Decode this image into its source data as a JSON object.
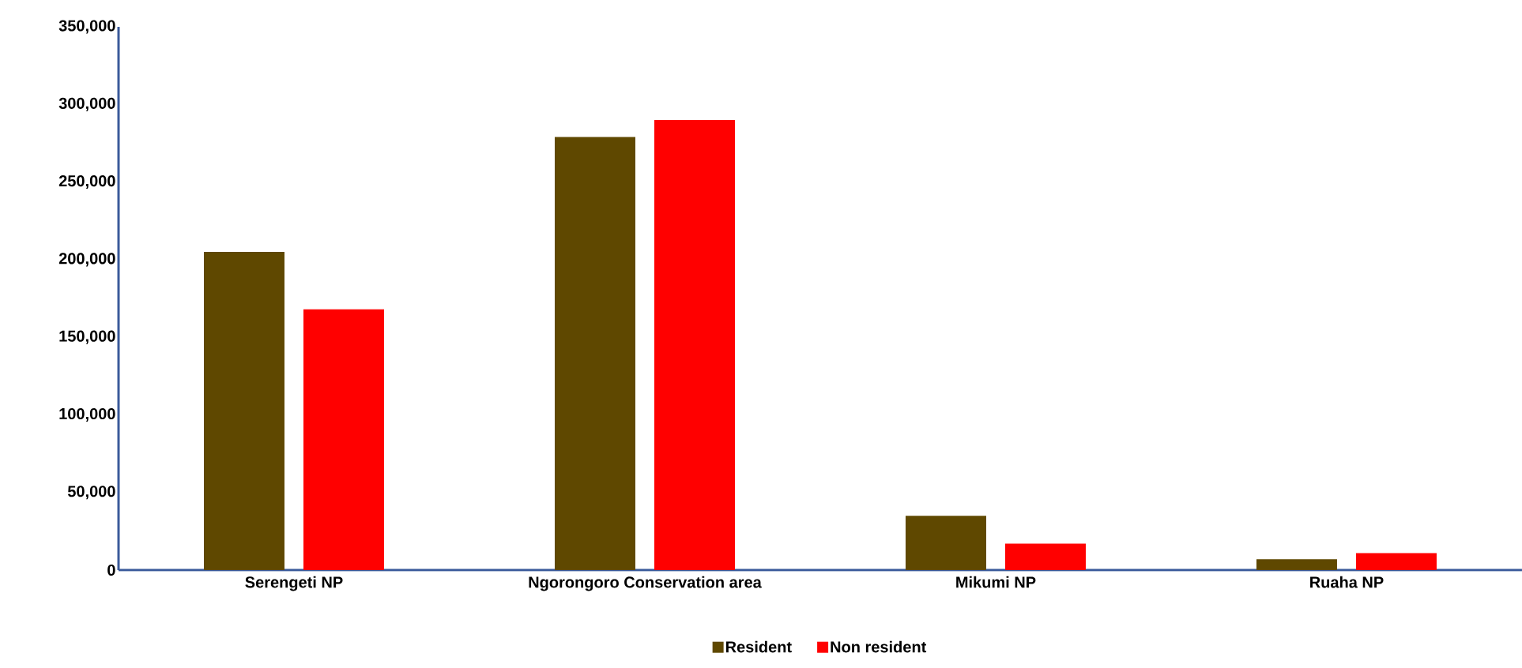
{
  "chart_data": {
    "type": "bar",
    "categories": [
      "Serengeti NP",
      "Ngorongoro Conservation area",
      "Mikumi NP",
      "Ruaha NP"
    ],
    "series": [
      {
        "name": "Resident",
        "color": "#5f4800",
        "values": [
          205000,
          279000,
          35000,
          7000
        ]
      },
      {
        "name": "Non resident",
        "color": "#ff0000",
        "values": [
          168000,
          290000,
          17000,
          11000
        ]
      }
    ],
    "ylim": [
      0,
      350000
    ],
    "yticks": [
      {
        "value": 0,
        "label": "0"
      },
      {
        "value": 50000,
        "label": "50,000"
      },
      {
        "value": 100000,
        "label": "100,000"
      },
      {
        "value": 150000,
        "label": "150,000"
      },
      {
        "value": 200000,
        "label": "200,000"
      },
      {
        "value": 250000,
        "label": "250,000"
      },
      {
        "value": 300000,
        "label": "300,000"
      },
      {
        "value": 350000,
        "label": "350,000"
      }
    ],
    "grid": false,
    "legend": "bottom"
  }
}
